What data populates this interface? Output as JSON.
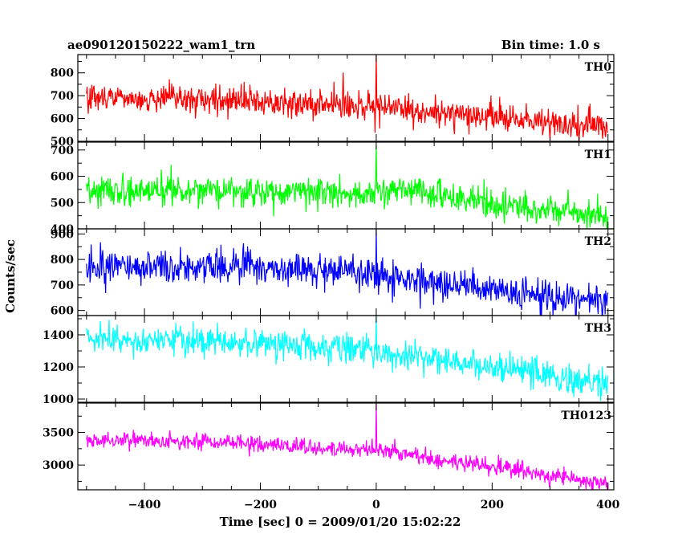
{
  "header": {
    "title": "ae090120150222_wam1_trn",
    "bin_time": "Bin time: 1.0 s"
  },
  "chart_data": {
    "type": "line",
    "xlabel": "Time [sec] 0 = 2009/01/20 15:02:22",
    "ylabel": "Counts/sec",
    "xlim": [
      -515,
      410
    ],
    "x_ticks": [
      -400,
      -200,
      0,
      200,
      400
    ],
    "x_tick_labels": [
      "−400",
      "−200",
      "0",
      "200",
      "400"
    ],
    "x_range": [
      -500,
      400
    ],
    "bin_time_s": 1.0,
    "grid": false,
    "panels": [
      {
        "name": "TH0",
        "color": "#ff0000",
        "ylim": [
          500,
          880
        ],
        "y_ticks": [
          500,
          600,
          700,
          800
        ],
        "y_tick_labels": [
          "500",
          "600",
          "700",
          "800"
        ],
        "trend": [
          [
            -500,
            690
          ],
          [
            -300,
            685
          ],
          [
            0,
            650
          ],
          [
            200,
            610
          ],
          [
            400,
            555
          ]
        ],
        "noise_sd": 32,
        "spike": {
          "x": 0,
          "peak": 880
        }
      },
      {
        "name": "TH1",
        "color": "#00ff00",
        "ylim": [
          400,
          730
        ],
        "y_ticks": [
          400,
          500,
          600,
          700
        ],
        "y_tick_labels": [
          "400",
          "500",
          "600",
          "700"
        ],
        "trend": [
          [
            -500,
            550
          ],
          [
            -300,
            545
          ],
          [
            0,
            535
          ],
          [
            50,
            560
          ],
          [
            200,
            495
          ],
          [
            400,
            455
          ]
        ],
        "noise_sd": 28,
        "spike": {
          "x": 0,
          "peak": 720
        }
      },
      {
        "name": "TH2",
        "color": "#0000ff",
        "ylim": [
          580,
          920
        ],
        "y_ticks": [
          600,
          700,
          800,
          900
        ],
        "y_tick_labels": [
          "600",
          "700",
          "800",
          "900"
        ],
        "trend": [
          [
            -500,
            770
          ],
          [
            -300,
            775
          ],
          [
            -100,
            760
          ],
          [
            0,
            740
          ],
          [
            200,
            680
          ],
          [
            400,
            635
          ]
        ],
        "noise_sd": 32,
        "spike": {
          "x": 0,
          "peak": 920
        }
      },
      {
        "name": "TH3",
        "color": "#00ffff",
        "ylim": [
          980,
          1520
        ],
        "y_ticks": [
          1000,
          1200,
          1400
        ],
        "y_tick_labels": [
          "1000",
          "1200",
          "1400"
        ],
        "trend": [
          [
            -500,
            1370
          ],
          [
            -300,
            1360
          ],
          [
            -100,
            1330
          ],
          [
            0,
            1290
          ],
          [
            200,
            1210
          ],
          [
            400,
            1090
          ]
        ],
        "noise_sd": 45,
        "spike": {
          "x": 0,
          "peak": 1520
        }
      },
      {
        "name": "TH0123",
        "color": "#ff00ff",
        "ylim": [
          2620,
          3950
        ],
        "y_ticks": [
          3000,
          3500
        ],
        "y_tick_labels": [
          "3000",
          "3500"
        ],
        "trend": [
          [
            -500,
            3380
          ],
          [
            -300,
            3370
          ],
          [
            0,
            3230
          ],
          [
            200,
            2970
          ],
          [
            400,
            2720
          ]
        ],
        "noise_sd": 65,
        "spike": {
          "x": 0,
          "peak": 3950
        }
      }
    ]
  }
}
